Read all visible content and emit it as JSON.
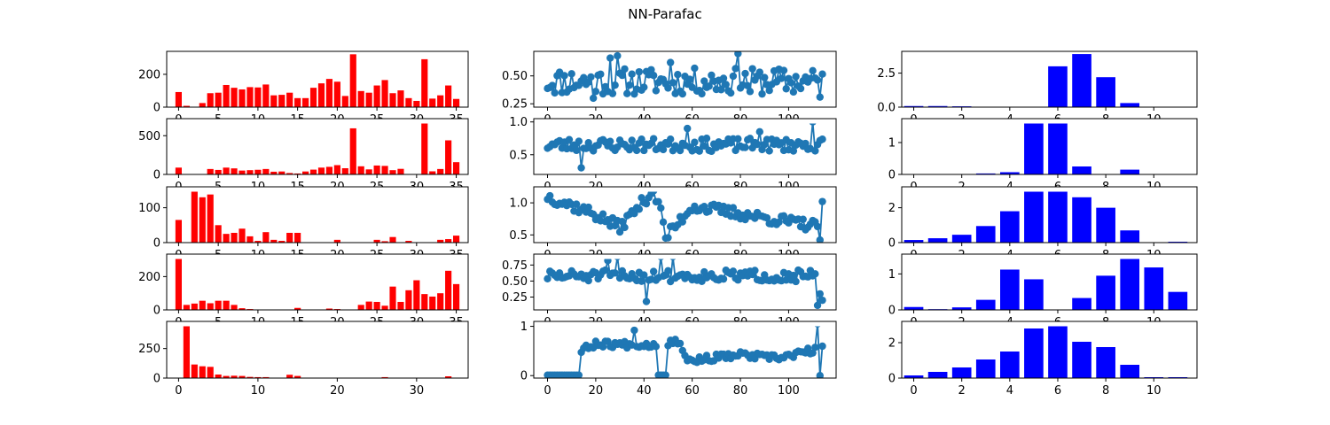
{
  "title": "NN-Parafac",
  "colors": {
    "bar_left": "#ff0000",
    "line_mid": "#1f77b4",
    "bar_right": "#0000ff",
    "axis": "#000000"
  },
  "chart_data": [
    {
      "type": "bar",
      "row": 0,
      "col": 0,
      "ylim": [
        0,
        340
      ],
      "yticks": [
        0,
        200
      ],
      "xticks": [
        0,
        5,
        10,
        15,
        20,
        25,
        30,
        35
      ],
      "xlim": [
        -1.5,
        36.5
      ],
      "values": [
        92,
        8,
        0,
        25,
        85,
        88,
        135,
        118,
        108,
        122,
        120,
        138,
        72,
        75,
        88,
        55,
        55,
        118,
        145,
        172,
        155,
        68,
        322,
        98,
        88,
        132,
        165,
        85,
        102,
        55,
        38,
        292,
        52,
        72,
        132,
        50
      ]
    },
    {
      "type": "bar",
      "row": 1,
      "col": 0,
      "ylim": [
        0,
        720
      ],
      "yticks": [
        0,
        500
      ],
      "xticks": [
        0,
        5,
        10,
        15,
        20,
        25,
        30,
        35
      ],
      "xlim": [
        -1.5,
        36.5
      ],
      "values": [
        88,
        0,
        0,
        0,
        70,
        58,
        88,
        78,
        50,
        55,
        60,
        70,
        35,
        38,
        18,
        12,
        38,
        62,
        88,
        98,
        120,
        80,
        595,
        105,
        65,
        115,
        110,
        55,
        72,
        0,
        0,
        700,
        40,
        70,
        440,
        158
      ]
    },
    {
      "type": "bar",
      "row": 2,
      "col": 0,
      "ylim": [
        0,
        160
      ],
      "yticks": [
        0,
        100
      ],
      "xticks": [
        0,
        5,
        10,
        15,
        20,
        25,
        30,
        35
      ],
      "xlim": [
        -1.5,
        36.5
      ],
      "values": [
        65,
        0,
        150,
        130,
        138,
        50,
        25,
        28,
        40,
        18,
        5,
        30,
        8,
        5,
        28,
        28,
        0,
        0,
        0,
        0,
        8,
        0,
        0,
        0,
        0,
        8,
        4,
        16,
        0,
        5,
        0,
        0,
        0,
        8,
        10,
        20
      ]
    },
    {
      "type": "bar",
      "row": 3,
      "col": 0,
      "ylim": [
        0,
        335
      ],
      "yticks": [
        0,
        200
      ],
      "xticks": [
        0,
        5,
        10,
        15,
        20,
        25,
        30,
        35
      ],
      "xlim": [
        -1.5,
        36.5
      ],
      "values": [
        330,
        30,
        38,
        55,
        40,
        55,
        55,
        30,
        10,
        5,
        0,
        0,
        0,
        0,
        0,
        12,
        0,
        0,
        0,
        8,
        5,
        0,
        0,
        30,
        50,
        48,
        25,
        140,
        48,
        118,
        178,
        95,
        80,
        100,
        235,
        155
      ]
    },
    {
      "type": "bar",
      "row": 4,
      "col": 0,
      "ylim": [
        0,
        480
      ],
      "yticks": [
        0,
        250
      ],
      "xticks": [
        0,
        10,
        20,
        30
      ],
      "xlim": [
        -1.5,
        36.5
      ],
      "show_tick_labels": true,
      "values": [
        0,
        440,
        115,
        100,
        95,
        30,
        18,
        20,
        18,
        10,
        8,
        8,
        0,
        0,
        28,
        18,
        0,
        0,
        0,
        0,
        0,
        0,
        0,
        0,
        0,
        0,
        8,
        0,
        0,
        0,
        0,
        0,
        0,
        0,
        15,
        0
      ]
    },
    {
      "type": "line",
      "row": 0,
      "col": 1,
      "ylim": [
        0.22,
        0.72
      ],
      "yticks": [
        0.25,
        0.5
      ],
      "ytick_labels": [
        "0.25",
        "0.50"
      ],
      "xticks": [
        0,
        20,
        40,
        60,
        80,
        100
      ],
      "xlim": [
        -5.7,
        119.7
      ],
      "seed": 11,
      "base": 0.45,
      "amp": 0.12,
      "spikes": [
        [
          19,
          0.3
        ],
        [
          26,
          0.66
        ],
        [
          29,
          0.68
        ],
        [
          51,
          0.62
        ],
        [
          79,
          0.7
        ],
        [
          84,
          0.36
        ],
        [
          113,
          0.31
        ]
      ]
    },
    {
      "type": "line",
      "row": 1,
      "col": 1,
      "ylim": [
        0.2,
        1.05
      ],
      "yticks": [
        0.5,
        1.0
      ],
      "ytick_labels": [
        "0.5",
        "1.0"
      ],
      "xticks": [
        0,
        20,
        40,
        60,
        80,
        100
      ],
      "xlim": [
        -5.7,
        119.7
      ],
      "seed": 23,
      "base": 0.65,
      "amp": 0.1,
      "spikes": [
        [
          14,
          0.3
        ],
        [
          58,
          0.9
        ],
        [
          88,
          0.85
        ],
        [
          110,
          1.0
        ]
      ]
    },
    {
      "type": "line",
      "row": 2,
      "col": 1,
      "ylim": [
        0.38,
        1.25
      ],
      "yticks": [
        0.5,
        1.0
      ],
      "ytick_labels": [
        "0.5",
        "1.0"
      ],
      "xticks": [
        0,
        20,
        40,
        60,
        80,
        100
      ],
      "xlim": [
        -5.7,
        119.7
      ],
      "seed": 37,
      "base": 0.78,
      "amp": 0.09,
      "trend": [
        [
          0,
          1.1
        ],
        [
          18,
          0.85
        ],
        [
          30,
          0.62
        ],
        [
          44,
          1.2
        ],
        [
          50,
          0.5
        ],
        [
          60,
          0.95
        ],
        [
          114,
          0.62
        ]
      ],
      "spikes": [
        [
          49,
          0.45
        ],
        [
          113,
          0.42
        ],
        [
          114,
          1.02
        ]
      ]
    },
    {
      "type": "line",
      "row": 3,
      "col": 1,
      "ylim": [
        0.05,
        0.92
      ],
      "yticks": [
        0.25,
        0.5,
        0.75
      ],
      "ytick_labels": [
        "0.25",
        "0.50",
        "0.75"
      ],
      "xticks": [
        0,
        20,
        40,
        60,
        80,
        100
      ],
      "xlim": [
        -5.7,
        119.7
      ],
      "seed": 51,
      "base": 0.58,
      "amp": 0.09,
      "spikes": [
        [
          25,
          0.82
        ],
        [
          29,
          0.88
        ],
        [
          41,
          0.18
        ],
        [
          47,
          0.88
        ],
        [
          52,
          0.88
        ],
        [
          112,
          0.12
        ],
        [
          113,
          0.3
        ],
        [
          114,
          0.2
        ]
      ]
    },
    {
      "type": "line",
      "row": 4,
      "col": 1,
      "ylim": [
        -0.05,
        1.1
      ],
      "yticks": [
        0,
        1
      ],
      "ytick_labels": [
        "0",
        "1"
      ],
      "xticks": [
        0,
        20,
        40,
        60,
        80,
        100
      ],
      "xlim": [
        -5.7,
        119.7
      ],
      "show_tick_labels": true,
      "seed": 67,
      "base": 0.4,
      "amp": 0.07,
      "zero_ranges": [
        [
          0,
          13
        ],
        [
          46,
          49
        ]
      ],
      "trend": [
        [
          14,
          0.5
        ],
        [
          20,
          0.65
        ],
        [
          40,
          0.62
        ],
        [
          55,
          0.7
        ],
        [
          58,
          0.3
        ],
        [
          80,
          0.42
        ],
        [
          95,
          0.35
        ],
        [
          114,
          0.55
        ]
      ],
      "spikes": [
        [
          36,
          0.92
        ],
        [
          112,
          1.05
        ],
        [
          113,
          0.0
        ]
      ]
    },
    {
      "type": "bar",
      "row": 0,
      "col": 2,
      "ylim": [
        0,
        4.1
      ],
      "yticks": [
        0,
        2.5
      ],
      "ytick_labels": [
        "0.0",
        "2.5"
      ],
      "xticks": [
        0,
        2,
        4,
        6,
        8,
        10
      ],
      "xlim": [
        -0.5,
        11.8
      ],
      "values": [
        0.08,
        0.08,
        0.06,
        0,
        0,
        0,
        3.0,
        3.9,
        2.2,
        0.3,
        0,
        0
      ]
    },
    {
      "type": "bar",
      "row": 1,
      "col": 2,
      "ylim": [
        0,
        1.75
      ],
      "yticks": [
        0,
        1
      ],
      "ytick_labels": [
        "0",
        "1"
      ],
      "xticks": [
        0,
        2,
        4,
        6,
        8,
        10
      ],
      "xlim": [
        -0.5,
        11.8
      ],
      "values": [
        0,
        0,
        0,
        0.03,
        0.07,
        1.7,
        1.6,
        0.25,
        0,
        0.15,
        0,
        0
      ]
    },
    {
      "type": "bar",
      "row": 2,
      "col": 2,
      "ylim": [
        0,
        3.2
      ],
      "yticks": [
        0,
        2
      ],
      "ytick_labels": [
        "0",
        "2"
      ],
      "xticks": [
        0,
        2,
        4,
        6,
        8,
        10
      ],
      "xlim": [
        -0.5,
        11.8
      ],
      "values": [
        0.15,
        0.25,
        0.45,
        0.95,
        1.8,
        3.05,
        2.95,
        2.6,
        2.0,
        0.7,
        0,
        0.05
      ]
    },
    {
      "type": "bar",
      "row": 3,
      "col": 2,
      "ylim": [
        0,
        1.55
      ],
      "yticks": [
        0,
        1
      ],
      "ytick_labels": [
        "0",
        "1"
      ],
      "xticks": [
        0,
        2,
        4,
        6,
        8,
        10
      ],
      "xlim": [
        -0.5,
        11.8
      ],
      "values": [
        0.08,
        0.02,
        0.07,
        0.28,
        1.12,
        0.85,
        0,
        0.33,
        0.95,
        1.48,
        1.18,
        0.5
      ]
    },
    {
      "type": "bar",
      "row": 4,
      "col": 2,
      "ylim": [
        0,
        3.2
      ],
      "yticks": [
        0,
        2
      ],
      "ytick_labels": [
        "0",
        "2"
      ],
      "xticks": [
        0,
        2,
        4,
        6,
        8,
        10
      ],
      "xlim": [
        -0.5,
        11.8
      ],
      "show_tick_labels": true,
      "values": [
        0.15,
        0.35,
        0.6,
        1.05,
        1.5,
        2.8,
        3.0,
        2.05,
        1.75,
        0.75,
        0.05,
        0.05
      ]
    }
  ]
}
